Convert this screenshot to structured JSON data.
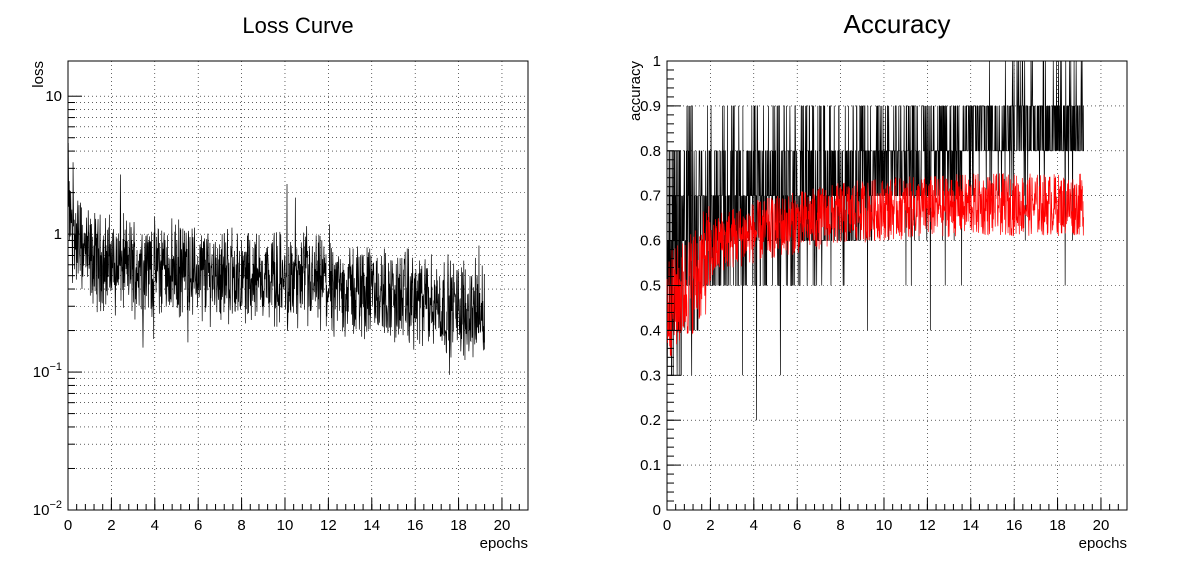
{
  "colors": {
    "train": "#000000",
    "test": "#ff0000",
    "grid": "#000000"
  },
  "chart_data": [
    {
      "type": "line",
      "title": "Loss Curve",
      "xlabel": "epochs",
      "ylabel": "loss",
      "xlim": [
        0,
        21.2
      ],
      "ylim": [
        0.01,
        18
      ],
      "log_y": true,
      "grid": true,
      "x_ticks": [
        0,
        2,
        4,
        6,
        8,
        10,
        12,
        14,
        16,
        18,
        20
      ],
      "y_ticks": [
        {
          "value": 0.01,
          "base": "10",
          "exp": "−2"
        },
        {
          "value": 0.1,
          "base": "10",
          "exp": "−1"
        },
        {
          "value": 1,
          "base": "1",
          "exp": ""
        },
        {
          "value": 10,
          "base": "10",
          "exp": ""
        }
      ],
      "series": [
        {
          "color": "#000000",
          "x_range": [
            0,
            19.2
          ],
          "trend": [
            [
              0,
              1.5
            ],
            [
              0.3,
              0.95
            ],
            [
              1,
              0.65
            ],
            [
              4,
              0.57
            ],
            [
              8,
              0.5
            ],
            [
              12,
              0.42
            ],
            [
              16,
              0.33
            ],
            [
              19.2,
              0.27
            ]
          ]
        }
      ]
    },
    {
      "type": "line",
      "title": "Accuracy",
      "xlabel": "epochs",
      "ylabel": "accuracy",
      "xlim": [
        0,
        21.2
      ],
      "ylim": [
        0,
        1
      ],
      "grid": true,
      "x_ticks": [
        0,
        2,
        4,
        6,
        8,
        10,
        12,
        14,
        16,
        18,
        20
      ],
      "y_ticks": [
        0,
        0.1,
        0.2,
        0.3,
        0.4,
        0.5,
        0.6,
        0.7,
        0.8,
        0.9,
        1
      ],
      "series": [
        {
          "color": "#000000",
          "x_range": [
            0,
            19.2
          ],
          "trend": [
            [
              0,
              0.55
            ],
            [
              1,
              0.62
            ],
            [
              2.5,
              0.68
            ],
            [
              6,
              0.72
            ],
            [
              8.5,
              0.75
            ],
            [
              12,
              0.8
            ],
            [
              16,
              0.86
            ],
            [
              19.2,
              0.87
            ]
          ]
        },
        {
          "color": "#ff0000",
          "x_range": [
            0,
            19.2
          ],
          "trend": [
            [
              0,
              0.45
            ],
            [
              1,
              0.5
            ],
            [
              2.5,
              0.6
            ],
            [
              5,
              0.63
            ],
            [
              8,
              0.66
            ],
            [
              10,
              0.67
            ],
            [
              14,
              0.68
            ],
            [
              19.2,
              0.68
            ]
          ]
        }
      ]
    }
  ]
}
